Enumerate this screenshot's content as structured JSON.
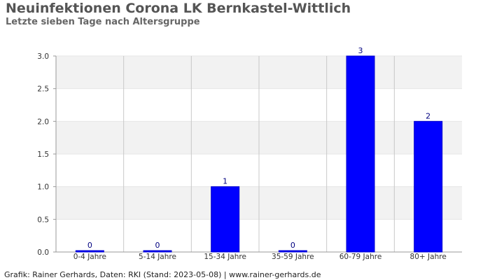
{
  "header": {
    "title": "Neuinfektionen Corona LK Bernkastel-Wittlich",
    "subtitle": "Letzte sieben Tage nach Altersgruppe"
  },
  "footer": {
    "credit": "Grafik: Rainer Gerhards, Daten: RKI (Stand: 2023-05-08) | www.rainer-gerhards.de"
  },
  "colors": {
    "bar": "#0000ff",
    "label": "#000080",
    "band": "#f2f2f2",
    "grid": "#c8c8c8"
  },
  "chart_data": {
    "type": "bar",
    "title": "Neuinfektionen Corona LK Bernkastel-Wittlich",
    "subtitle": "Letzte sieben Tage nach Altersgruppe",
    "xlabel": "",
    "ylabel": "",
    "categories": [
      "0-4 Jahre",
      "5-14 Jahre",
      "15-34 Jahre",
      "35-59 Jahre",
      "60-79 Jahre",
      "80+ Jahre"
    ],
    "values": [
      0,
      0,
      1,
      0,
      3,
      2
    ],
    "data_labels": [
      "0",
      "0",
      "1",
      "0",
      "3",
      "2"
    ],
    "ylim": [
      0,
      3
    ],
    "yticks": [
      "0.0",
      "0.5",
      "1.0",
      "1.5",
      "2.0",
      "2.5",
      "3.0"
    ],
    "grid": true,
    "legend": "none"
  }
}
